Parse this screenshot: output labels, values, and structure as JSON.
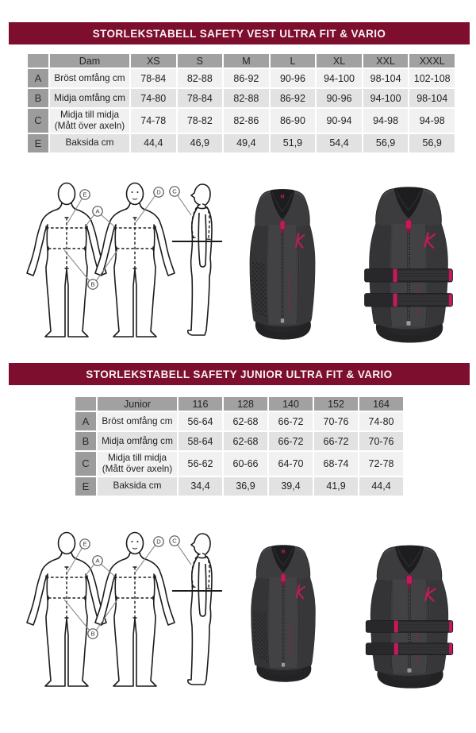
{
  "section_vest": {
    "title": "STORLEKSTABELL SAFETY VEST ULTRA FIT & VARIO",
    "table": {
      "headers": [
        "",
        "Dam",
        "XS",
        "S",
        "M",
        "L",
        "XL",
        "XXL",
        "XXXL"
      ],
      "rows": [
        {
          "key": "A",
          "label": "Bröst omfång cm",
          "values": [
            "78-84",
            "82-88",
            "86-92",
            "90-96",
            "94-100",
            "98-104",
            "102-108"
          ]
        },
        {
          "key": "B",
          "label": "Midja omfång cm",
          "values": [
            "74-80",
            "78-84",
            "82-88",
            "86-92",
            "90-96",
            "94-100",
            "98-104"
          ]
        },
        {
          "key": "C",
          "label": "Midja till midja\n(Mått över axeln)",
          "values": [
            "74-78",
            "78-82",
            "82-86",
            "86-90",
            "90-94",
            "94-98",
            "94-98"
          ]
        },
        {
          "key": "E",
          "label": "Baksida cm",
          "values": [
            "44,4",
            "46,9",
            "49,4",
            "51,9",
            "54,4",
            "56,9",
            "56,9"
          ]
        }
      ]
    }
  },
  "section_junior": {
    "title": "STORLEKSTABELL SAFETY JUNIOR ULTRA FIT & VARIO",
    "table": {
      "headers": [
        "",
        "Junior",
        "116",
        "128",
        "140",
        "152",
        "164"
      ],
      "rows": [
        {
          "key": "A",
          "label": "Bröst omfång cm",
          "values": [
            "56-64",
            "62-68",
            "66-72",
            "70-76",
            "74-80"
          ]
        },
        {
          "key": "B",
          "label": "Midja omfång cm",
          "values": [
            "58-64",
            "62-68",
            "66-72",
            "66-72",
            "70-76"
          ]
        },
        {
          "key": "C",
          "label": "Midja till midja\n(Mått över axeln)",
          "values": [
            "56-62",
            "60-66",
            "64-70",
            "68-74",
            "72-78"
          ]
        },
        {
          "key": "E",
          "label": "Baksida cm",
          "values": [
            "34,4",
            "36,9",
            "39,4",
            "41,9",
            "44,4"
          ]
        }
      ]
    }
  },
  "diagram": {
    "label_a": "A",
    "label_b": "B",
    "label_c": "C",
    "label_d": "D",
    "label_e": "E"
  },
  "vest": {
    "size_tag": "M"
  },
  "colors": {
    "banner": "#7d0e2d",
    "accent_pink": "#c4195c",
    "header_gray": "#a1a1a1",
    "row_light": "#f1f1f1",
    "row_dark": "#e2e2e2"
  }
}
